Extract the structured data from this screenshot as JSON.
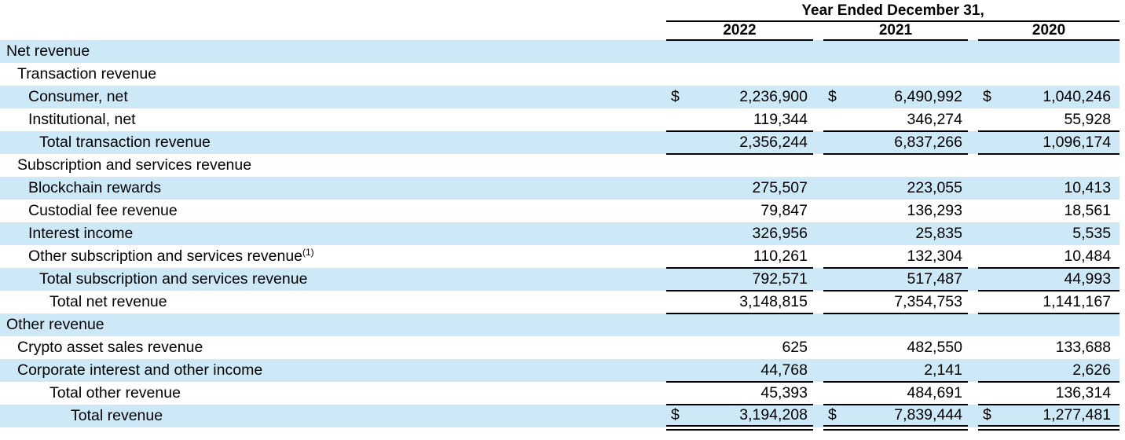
{
  "table": {
    "period_title": "Year Ended December 31,",
    "years": [
      "2022",
      "2021",
      "2020"
    ],
    "currency_symbol": "$",
    "highlight_color": "#CDE9F8",
    "rows": [
      {
        "label": "Net revenue",
        "indent": 0,
        "highlight": true,
        "dollar": false,
        "values": [
          "",
          "",
          ""
        ],
        "border": "none"
      },
      {
        "label": "Transaction revenue",
        "indent": 1,
        "highlight": false,
        "dollar": false,
        "values": [
          "",
          "",
          ""
        ],
        "border": "none"
      },
      {
        "label": "Consumer, net",
        "indent": 2,
        "highlight": true,
        "dollar": true,
        "values": [
          "2,236,900",
          "6,490,992",
          "1,040,246"
        ],
        "border": "none"
      },
      {
        "label": "Institutional, net",
        "indent": 2,
        "highlight": false,
        "dollar": false,
        "values": [
          "119,344",
          "346,274",
          "55,928"
        ],
        "border": "single"
      },
      {
        "label": "Total transaction revenue",
        "indent": 3,
        "highlight": true,
        "dollar": false,
        "values": [
          "2,356,244",
          "6,837,266",
          "1,096,174"
        ],
        "border": "single"
      },
      {
        "label": "Subscription and services revenue",
        "indent": 1,
        "highlight": false,
        "dollar": false,
        "values": [
          "",
          "",
          ""
        ],
        "border": "none"
      },
      {
        "label": "Blockchain rewards",
        "indent": 2,
        "highlight": true,
        "dollar": false,
        "values": [
          "275,507",
          "223,055",
          "10,413"
        ],
        "border": "none"
      },
      {
        "label": "Custodial fee revenue",
        "indent": 2,
        "highlight": false,
        "dollar": false,
        "values": [
          "79,847",
          "136,293",
          "18,561"
        ],
        "border": "none"
      },
      {
        "label": "Interest income",
        "indent": 2,
        "highlight": true,
        "dollar": false,
        "values": [
          "326,956",
          "25,835",
          "5,535"
        ],
        "border": "none"
      },
      {
        "label": "Other subscription and services revenue",
        "sup": "(1)",
        "indent": 2,
        "highlight": false,
        "dollar": false,
        "values": [
          "110,261",
          "132,304",
          "10,484"
        ],
        "border": "single"
      },
      {
        "label": "Total subscription and services revenue",
        "indent": 3,
        "highlight": true,
        "dollar": false,
        "values": [
          "792,571",
          "517,487",
          "44,993"
        ],
        "border": "single"
      },
      {
        "label": "Total net revenue",
        "indent": 4,
        "highlight": false,
        "dollar": false,
        "values": [
          "3,148,815",
          "7,354,753",
          "1,141,167"
        ],
        "border": "single"
      },
      {
        "label": "Other revenue",
        "indent": 0,
        "highlight": true,
        "dollar": false,
        "values": [
          "",
          "",
          ""
        ],
        "border": "none"
      },
      {
        "label": "Crypto asset sales revenue",
        "indent": 1,
        "highlight": false,
        "dollar": false,
        "values": [
          "625",
          "482,550",
          "133,688"
        ],
        "border": "none"
      },
      {
        "label": "Corporate interest and other income",
        "indent": 1,
        "highlight": true,
        "dollar": false,
        "values": [
          "44,768",
          "2,141",
          "2,626"
        ],
        "border": "single"
      },
      {
        "label": "Total other revenue",
        "indent": 4,
        "highlight": false,
        "dollar": false,
        "values": [
          "45,393",
          "484,691",
          "136,314"
        ],
        "border": "single"
      },
      {
        "label": "Total revenue",
        "indent": 5,
        "highlight": true,
        "dollar": true,
        "values": [
          "3,194,208",
          "7,839,444",
          "1,277,481"
        ],
        "border": "double"
      }
    ]
  }
}
